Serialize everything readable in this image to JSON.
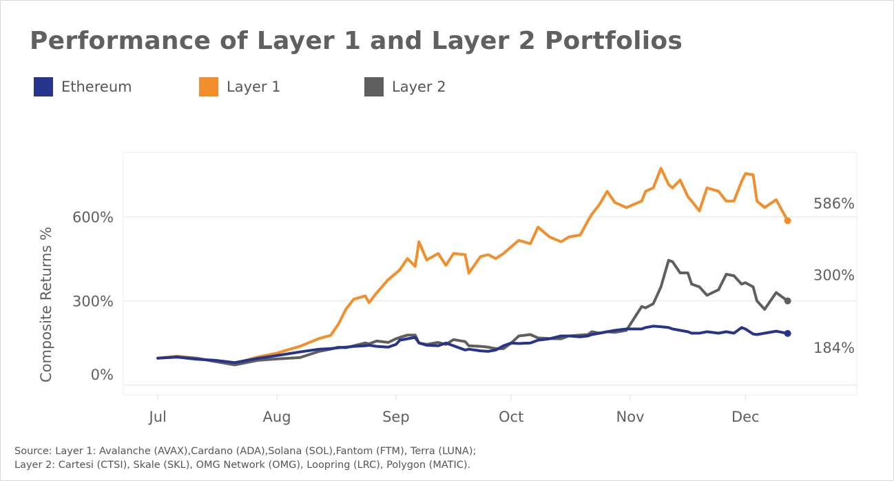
{
  "chart_data": {
    "type": "line",
    "title": "Performance of Layer 1 and Layer 2 Portfolios",
    "xlabel": "",
    "ylabel": "Composite Returns %",
    "ylim": [
      -35,
      830
    ],
    "yticks": [
      0,
      300,
      600
    ],
    "ytick_labels": [
      "0%",
      "300%",
      "600%"
    ],
    "xtick_labels": [
      "Jul",
      "Aug",
      "Sep",
      "Oct",
      "Nov",
      "Dec"
    ],
    "xtick_dates": [
      "Jul 01",
      "Aug 01",
      "Sep 01",
      "Oct 01",
      "Nov 01",
      "Dec 01"
    ],
    "xlim": [
      "Jun 22",
      "Dec 30"
    ],
    "grid": "horizontal",
    "legend": "top-left",
    "x": [
      "Jul 01",
      "Jul 06",
      "Jul 11",
      "Jul 16",
      "Jul 21",
      "Jul 27",
      "Aug 01",
      "Aug 07",
      "Aug 12",
      "Aug 15",
      "Aug 17",
      "Aug 19",
      "Aug 21",
      "Aug 24",
      "Aug 25",
      "Aug 27",
      "Aug 30",
      "Sep 01",
      "Sep 02",
      "Sep 04",
      "Sep 06",
      "Sep 07",
      "Sep 09",
      "Sep 12",
      "Sep 14",
      "Sep 16",
      "Sep 19",
      "Sep 20",
      "Sep 23",
      "Sep 25",
      "Sep 27",
      "Sep 29",
      "Oct 01",
      "Oct 03",
      "Oct 06",
      "Oct 08",
      "Oct 11",
      "Oct 14",
      "Oct 16",
      "Oct 19",
      "Oct 21",
      "Oct 22",
      "Oct 24",
      "Oct 26",
      "Oct 28",
      "Oct 31",
      "Nov 04",
      "Nov 05",
      "Nov 07",
      "Nov 09",
      "Nov 11",
      "Nov 12",
      "Nov 14",
      "Nov 16",
      "Nov 17",
      "Nov 19",
      "Nov 21",
      "Nov 24",
      "Nov 26",
      "Nov 28",
      "Nov 30",
      "Dec 01",
      "Dec 03",
      "Dec 04",
      "Dec 06",
      "Dec 09",
      "Dec 12"
    ],
    "series": [
      {
        "name": "Ethereum",
        "color": "#27348b",
        "end_label": "184%",
        "values": [
          96,
          100,
          92,
          88,
          80,
          95,
          105,
          118,
          128,
          130,
          133,
          135,
          138,
          140,
          142,
          138,
          135,
          145,
          160,
          165,
          170,
          150,
          142,
          140,
          150,
          140,
          125,
          128,
          122,
          120,
          125,
          140,
          150,
          148,
          150,
          160,
          165,
          175,
          175,
          172,
          175,
          180,
          185,
          190,
          195,
          200,
          200,
          205,
          210,
          208,
          205,
          200,
          195,
          190,
          185,
          185,
          190,
          185,
          190,
          185,
          205,
          200,
          182,
          180,
          185,
          192,
          184
        ]
      },
      {
        "name": "Layer 1",
        "color": "#f28e2b",
        "end_label": "586%",
        "values": [
          96,
          103,
          96,
          84,
          77,
          100,
          114,
          138,
          166,
          177,
          217,
          271,
          306,
          318,
          294,
          329,
          376,
          399,
          411,
          451,
          423,
          511,
          446,
          469,
          427,
          469,
          465,
          399,
          458,
          465,
          451,
          469,
          493,
          516,
          504,
          563,
          528,
          511,
          528,
          535,
          586,
          609,
          644,
          691,
          651,
          633,
          656,
          691,
          703,
          773,
          715,
          703,
          731,
          672,
          656,
          621,
          703,
          691,
          656,
          656,
          726,
          754,
          750,
          656,
          633,
          661,
          586
        ]
      },
      {
        "name": "Layer 2",
        "color": "#5f5f5f",
        "end_label": "300%",
        "values": [
          96,
          100,
          96,
          84,
          72,
          88,
          93,
          98,
          120,
          128,
          135,
          133,
          140,
          150,
          147,
          157,
          152,
          165,
          170,
          178,
          178,
          150,
          145,
          152,
          145,
          162,
          155,
          140,
          138,
          135,
          130,
          130,
          150,
          175,
          180,
          168,
          166,
          165,
          175,
          178,
          180,
          190,
          185,
          190,
          188,
          195,
          280,
          275,
          290,
          350,
          445,
          440,
          400,
          400,
          360,
          350,
          320,
          340,
          395,
          390,
          360,
          365,
          350,
          300,
          270,
          330,
          300
        ]
      }
    ]
  },
  "source": {
    "line1": "Source: Layer 1: Avalanche (AVAX),Cardano (ADA),Solana (SOL),Fantom (FTM), Terra (LUNA);",
    "line2": "Layer 2: Cartesi (CTSI), Skale (SKL), OMG Network (OMG), Loopring (LRC), Polygon (MATIC)."
  }
}
